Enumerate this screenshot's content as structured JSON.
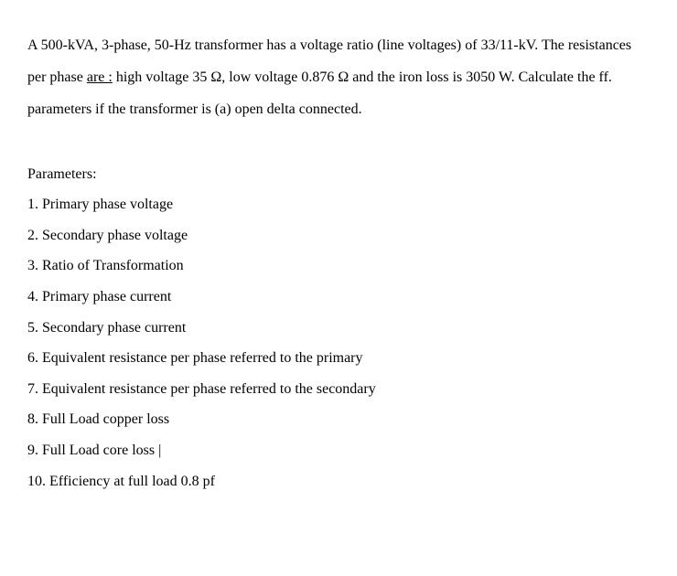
{
  "problem": {
    "intro": "A 500-kVA, 3-phase, 50-Hz transformer has a voltage ratio (line voltages) of 33/11-kV. The resistances per phase ",
    "underlined": "are :",
    "rest": " high voltage 35 Ω, low voltage 0.876 Ω and the iron loss is 3050 W. Calculate the ff. parameters if the transformer is (a) open delta connected."
  },
  "parameters_heading": "Parameters:",
  "parameters": [
    "1. Primary phase voltage",
    "2. Secondary phase voltage",
    "3. Ratio of Transformation",
    "4. Primary phase current",
    "5. Secondary phase current",
    "6. Equivalent resistance per phase referred to the primary",
    "7. Equivalent resistance per phase referred to the secondary",
    "8. Full Load copper loss",
    "9. Full Load core loss  |",
    "10. Efficiency at full load 0.8 pf"
  ]
}
